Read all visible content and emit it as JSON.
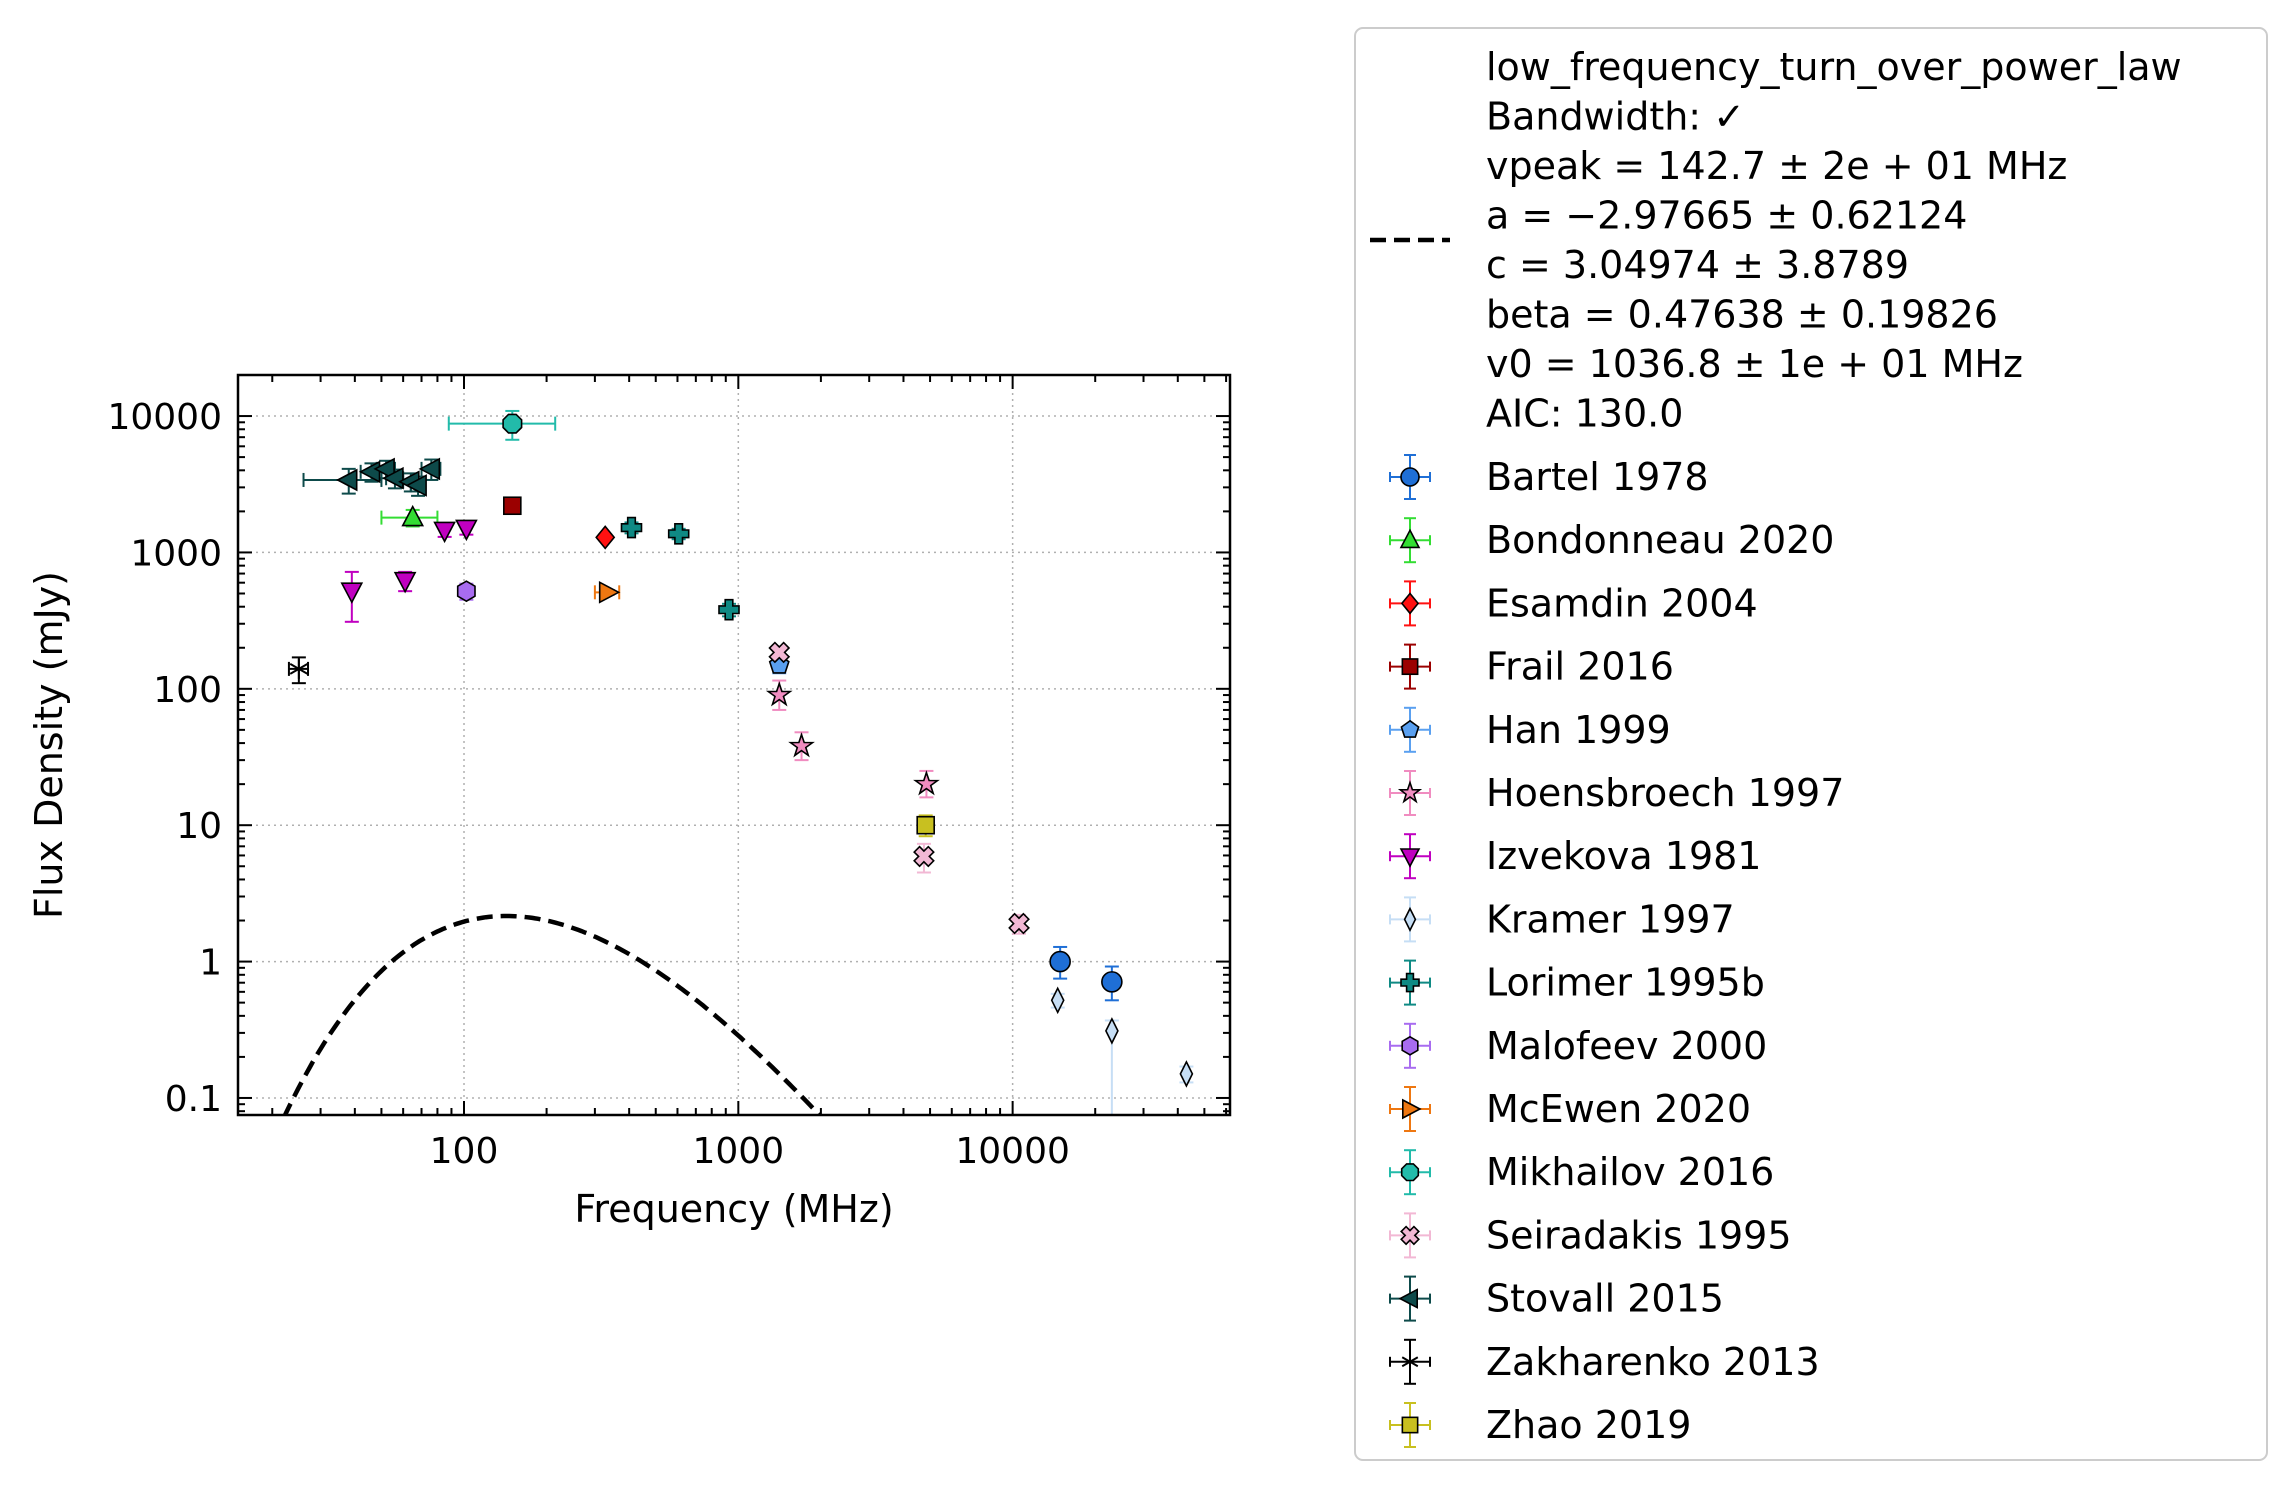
{
  "chart_data": {
    "type": "scatter",
    "xlabel": "Frequency (MHz)",
    "ylabel": "Flux Density (mJy)",
    "xscale": "log",
    "yscale": "log",
    "xlim": [
      15,
      62000
    ],
    "ylim": [
      0.075,
      20000
    ],
    "grid": true,
    "legend_position": "outside-right",
    "xticks": [
      {
        "value": 100,
        "label": "100"
      },
      {
        "value": 1000,
        "label": "1000"
      },
      {
        "value": 10000,
        "label": "10000"
      }
    ],
    "yticks": [
      {
        "value": 0.1,
        "label": "0.1"
      },
      {
        "value": 1,
        "label": "1"
      },
      {
        "value": 10,
        "label": "10"
      },
      {
        "value": 100,
        "label": "100"
      },
      {
        "value": 1000,
        "label": "1000"
      },
      {
        "value": 10000,
        "label": "10000"
      }
    ],
    "fit": {
      "model": "low_frequency_turn_over_power_law",
      "label_lines": [
        "low_frequency_turn_over_power_law",
        "Bandwidth: ✓",
        "vpeak = 142.7 ± 2e + 01 MHz",
        "a = −2.97665 ± 0.62124",
        "c = 3.04974 ± 3.8789",
        "beta = 0.47638 ± 0.19826",
        "v0 = 1036.8 ± 1e + 01 MHz",
        "AIC: 130.0"
      ],
      "params": {
        "vpeak": 142.7,
        "a": -2.97665,
        "c": 3.04974,
        "beta": 0.47638,
        "v0": 1036.8
      },
      "x_range": [
        22,
        32000
      ],
      "color": "#000000"
    },
    "series": [
      {
        "name": "Bartel 1978",
        "marker": "circle",
        "color": "#1f6fd6",
        "points": [
          {
            "x": 14900,
            "y": 1.0,
            "ylo": 0.75,
            "yhi": 1.28
          },
          {
            "x": 23000,
            "y": 0.71,
            "ylo": 0.52,
            "yhi": 0.92
          }
        ]
      },
      {
        "name": "Bondonneau 2020",
        "marker": "triangle-up",
        "color": "#33dd33",
        "points": [
          {
            "x": 65,
            "y": 1800,
            "xlo": 50,
            "xhi": 80,
            "ylo": 1550,
            "yhi": 2050
          }
        ]
      },
      {
        "name": "Esamdin 2004",
        "marker": "diamond",
        "color": "#ff1111",
        "points": [
          {
            "x": 327,
            "y": 1290,
            "ylo": 1230,
            "yhi": 1350
          }
        ]
      },
      {
        "name": "Frail 2016",
        "marker": "square",
        "color": "#9b0000",
        "points": [
          {
            "x": 150,
            "y": 2200,
            "ylo": 2050,
            "yhi": 2350
          }
        ]
      },
      {
        "name": "Han 1999",
        "marker": "pentagon",
        "color": "#5aa0f0",
        "points": [
          {
            "x": 1410,
            "y": 150,
            "ylo": 130,
            "yhi": 170
          }
        ]
      },
      {
        "name": "Hoensbroech 1997",
        "marker": "star",
        "color": "#f08cc0",
        "points": [
          {
            "x": 1410,
            "y": 90,
            "ylo": 70,
            "yhi": 115
          },
          {
            "x": 1700,
            "y": 38,
            "ylo": 30,
            "yhi": 48
          },
          {
            "x": 4850,
            "y": 20,
            "ylo": 16,
            "yhi": 25
          }
        ]
      },
      {
        "name": "Izvekova 1981",
        "marker": "triangle-down",
        "color": "#c000c0",
        "points": [
          {
            "x": 39,
            "y": 520,
            "ylo": 310,
            "yhi": 720
          },
          {
            "x": 61,
            "y": 620,
            "ylo": 520,
            "yhi": 720
          },
          {
            "x": 85,
            "y": 1450,
            "ylo": 1300,
            "yhi": 1600
          },
          {
            "x": 102,
            "y": 1500,
            "ylo": 1350,
            "yhi": 1650
          }
        ]
      },
      {
        "name": "Kramer 1997",
        "marker": "thin-diamond",
        "color": "#c6def5",
        "points": [
          {
            "x": 14600,
            "y": 0.52,
            "ylo": 0.46,
            "yhi": 0.58
          },
          {
            "x": 23000,
            "y": 0.31,
            "ylo": 0.05,
            "yhi": 0.37
          },
          {
            "x": 43000,
            "y": 0.15,
            "ylo": 0.13,
            "yhi": 0.17
          }
        ]
      },
      {
        "name": "Lorimer 1995b",
        "marker": "plus",
        "color": "#0f8a84",
        "points": [
          {
            "x": 408,
            "y": 1520,
            "ylo": 1380,
            "yhi": 1660
          },
          {
            "x": 606,
            "y": 1370,
            "ylo": 1250,
            "yhi": 1490
          },
          {
            "x": 925,
            "y": 380,
            "ylo": 340,
            "yhi": 420
          }
        ]
      },
      {
        "name": "Malofeev 2000",
        "marker": "hexagon",
        "color": "#a86cf0",
        "points": [
          {
            "x": 102,
            "y": 520,
            "ylo": 450,
            "yhi": 590
          }
        ]
      },
      {
        "name": "McEwen 2020",
        "marker": "triangle-right",
        "color": "#ee7711",
        "points": [
          {
            "x": 334,
            "y": 510,
            "xlo": 300,
            "xhi": 368,
            "ylo": 490,
            "yhi": 530
          }
        ]
      },
      {
        "name": "Mikhailov 2016",
        "marker": "octagon",
        "color": "#22bbaa",
        "points": [
          {
            "x": 150,
            "y": 8800,
            "xlo": 88,
            "xhi": 215,
            "ylo": 6700,
            "yhi": 10900
          }
        ]
      },
      {
        "name": "Seiradakis 1995",
        "marker": "x-filled",
        "color": "#f2b8d4",
        "points": [
          {
            "x": 1410,
            "y": 185,
            "ylo": 165,
            "yhi": 205
          },
          {
            "x": 4750,
            "y": 5.9,
            "ylo": 4.5,
            "yhi": 7.3
          },
          {
            "x": 10550,
            "y": 1.9,
            "ylo": 1.6,
            "yhi": 2.2
          }
        ]
      },
      {
        "name": "Stovall 2015",
        "marker": "triangle-left",
        "color": "#0d4a4a",
        "points": [
          {
            "x": 38,
            "y": 3400,
            "xlo": 26,
            "xhi": 50,
            "ylo": 2700,
            "yhi": 4100
          },
          {
            "x": 46,
            "y": 3900,
            "xlo": 42,
            "xhi": 50,
            "ylo": 3300,
            "yhi": 4500
          },
          {
            "x": 52,
            "y": 4100,
            "xlo": 48,
            "xhi": 56,
            "ylo": 3500,
            "yhi": 4700
          },
          {
            "x": 56,
            "y": 3500,
            "xlo": 52,
            "xhi": 60,
            "ylo": 2950,
            "yhi": 4050
          },
          {
            "x": 64,
            "y": 3300,
            "xlo": 60,
            "xhi": 68,
            "ylo": 2800,
            "yhi": 3800
          },
          {
            "x": 68,
            "y": 3100,
            "xlo": 64,
            "xhi": 72,
            "ylo": 2600,
            "yhi": 3600
          },
          {
            "x": 76,
            "y": 4100,
            "xlo": 70,
            "xhi": 82,
            "ylo": 3400,
            "yhi": 4800
          }
        ]
      },
      {
        "name": "Zakharenko 2013",
        "marker": "asterisk",
        "color": "#000000",
        "points": [
          {
            "x": 25,
            "y": 140,
            "xlo": 23,
            "xhi": 27,
            "ylo": 110,
            "yhi": 170
          }
        ]
      },
      {
        "name": "Zhao 2019",
        "marker": "square",
        "color": "#c8c020",
        "points": [
          {
            "x": 4820,
            "y": 10,
            "ylo": 8.3,
            "yhi": 11.8
          }
        ]
      }
    ]
  }
}
